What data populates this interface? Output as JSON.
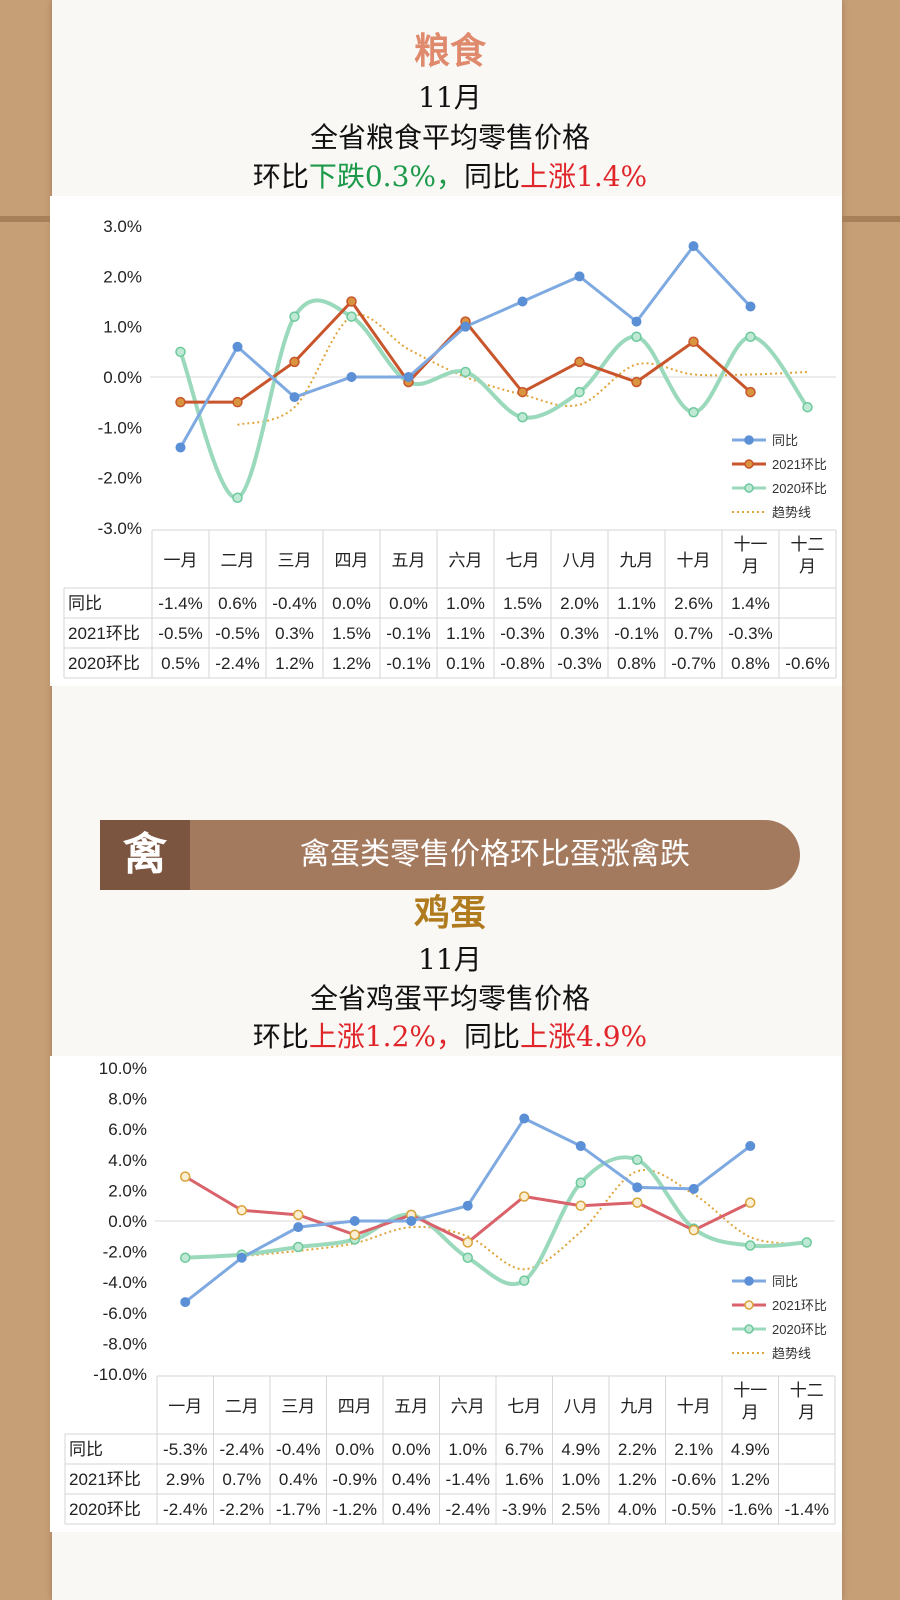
{
  "colors": {
    "yoy": "#7ea9e1",
    "mom2021_grain": "#c8552b",
    "mom2021_egg": "#d9626b",
    "mom2020": "#9bd9bc",
    "trend": "#e0a43a",
    "grain_title": "#e08a6d",
    "egg_title": "#b07b1e",
    "down": "#1c9a4a",
    "up": "#e0262a"
  },
  "grain": {
    "category": "粮食",
    "month": "11月",
    "subtitle": "全省粮食平均零售价格",
    "mom_prefix": "环比",
    "mom_dir": "下跌",
    "mom_val": "0.3%，",
    "yoy_prefix": "同比",
    "yoy_dir": "上涨",
    "yoy_val": "1.4%"
  },
  "banner": {
    "badge": "禽",
    "text": "禽蛋类零售价格环比蛋涨禽跌"
  },
  "egg": {
    "category": "鸡蛋",
    "month": "11月",
    "subtitle": "全省鸡蛋平均零售价格",
    "mom_prefix": "环比",
    "mom_dir": "上涨",
    "mom_val": "1.2%，",
    "yoy_prefix": "同比",
    "yoy_dir": "上涨",
    "yoy_val": "4.9%"
  },
  "chart_data": [
    {
      "type": "line",
      "ylim": [
        -3,
        3
      ],
      "yticks": [
        "3.0%",
        "2.0%",
        "1.0%",
        "0.0%",
        "-1.0%",
        "-2.0%",
        "-3.0%"
      ],
      "categories": [
        "一月",
        "二月",
        "三月",
        "四月",
        "五月",
        "六月",
        "七月",
        "八月",
        "九月",
        "十月",
        "十一月",
        "十二月"
      ],
      "series": [
        {
          "name": "同比",
          "values": [
            -1.4,
            0.6,
            -0.4,
            0.0,
            0.0,
            1.0,
            1.5,
            2.0,
            1.1,
            2.6,
            1.4,
            null
          ],
          "labels": [
            "-1.4%",
            "0.6%",
            "-0.4%",
            "0.0%",
            "0.0%",
            "1.0%",
            "1.5%",
            "2.0%",
            "1.1%",
            "2.6%",
            "1.4%",
            ""
          ]
        },
        {
          "name": "2021环比",
          "values": [
            -0.5,
            -0.5,
            0.3,
            1.5,
            -0.1,
            1.1,
            -0.3,
            0.3,
            -0.1,
            0.7,
            -0.3,
            null
          ],
          "labels": [
            "-0.5%",
            "-0.5%",
            "0.3%",
            "1.5%",
            "-0.1%",
            "1.1%",
            "-0.3%",
            "0.3%",
            "-0.1%",
            "0.7%",
            "-0.3%",
            ""
          ]
        },
        {
          "name": "2020环比",
          "values": [
            0.5,
            -2.4,
            1.2,
            1.2,
            -0.1,
            0.1,
            -0.8,
            -0.3,
            0.8,
            -0.7,
            0.8,
            -0.6
          ],
          "labels": [
            "0.5%",
            "-2.4%",
            "1.2%",
            "1.2%",
            "-0.1%",
            "0.1%",
            "-0.8%",
            "-0.3%",
            "0.8%",
            "-0.7%",
            "0.8%",
            "-0.6%"
          ]
        }
      ],
      "trend_name": "趋势线",
      "legend_position": "right"
    },
    {
      "type": "line",
      "ylim": [
        -10,
        10
      ],
      "yticks": [
        "10.0%",
        "8.0%",
        "6.0%",
        "4.0%",
        "2.0%",
        "0.0%",
        "-2.0%",
        "-4.0%",
        "-6.0%",
        "-8.0%",
        "-10.0%"
      ],
      "categories": [
        "一月",
        "二月",
        "三月",
        "四月",
        "五月",
        "六月",
        "七月",
        "八月",
        "九月",
        "十月",
        "十一月",
        "十二月"
      ],
      "series": [
        {
          "name": "同比",
          "values": [
            -5.3,
            -2.4,
            -0.4,
            0.0,
            0.0,
            1.0,
            6.7,
            4.9,
            2.2,
            2.1,
            4.9,
            null
          ],
          "labels": [
            "-5.3%",
            "-2.4%",
            "-0.4%",
            "0.0%",
            "0.0%",
            "1.0%",
            "6.7%",
            "4.9%",
            "2.2%",
            "2.1%",
            "4.9%",
            ""
          ]
        },
        {
          "name": "2021环比",
          "values": [
            2.9,
            0.7,
            0.4,
            -0.9,
            0.4,
            -1.4,
            1.6,
            1.0,
            1.2,
            -0.6,
            1.2,
            null
          ],
          "labels": [
            "2.9%",
            "0.7%",
            "0.4%",
            "-0.9%",
            "0.4%",
            "-1.4%",
            "1.6%",
            "1.0%",
            "1.2%",
            "-0.6%",
            "1.2%",
            ""
          ]
        },
        {
          "name": "2020环比",
          "values": [
            -2.4,
            -2.2,
            -1.7,
            -1.2,
            0.4,
            -2.4,
            -3.9,
            2.5,
            4.0,
            -0.5,
            -1.6,
            -1.4
          ],
          "labels": [
            "-2.4%",
            "-2.2%",
            "-1.7%",
            "-1.2%",
            "0.4%",
            "-2.4%",
            "-3.9%",
            "2.5%",
            "4.0%",
            "-0.5%",
            "-1.6%",
            "-1.4%"
          ]
        }
      ],
      "trend_name": "趋势线",
      "legend_position": "right"
    }
  ]
}
